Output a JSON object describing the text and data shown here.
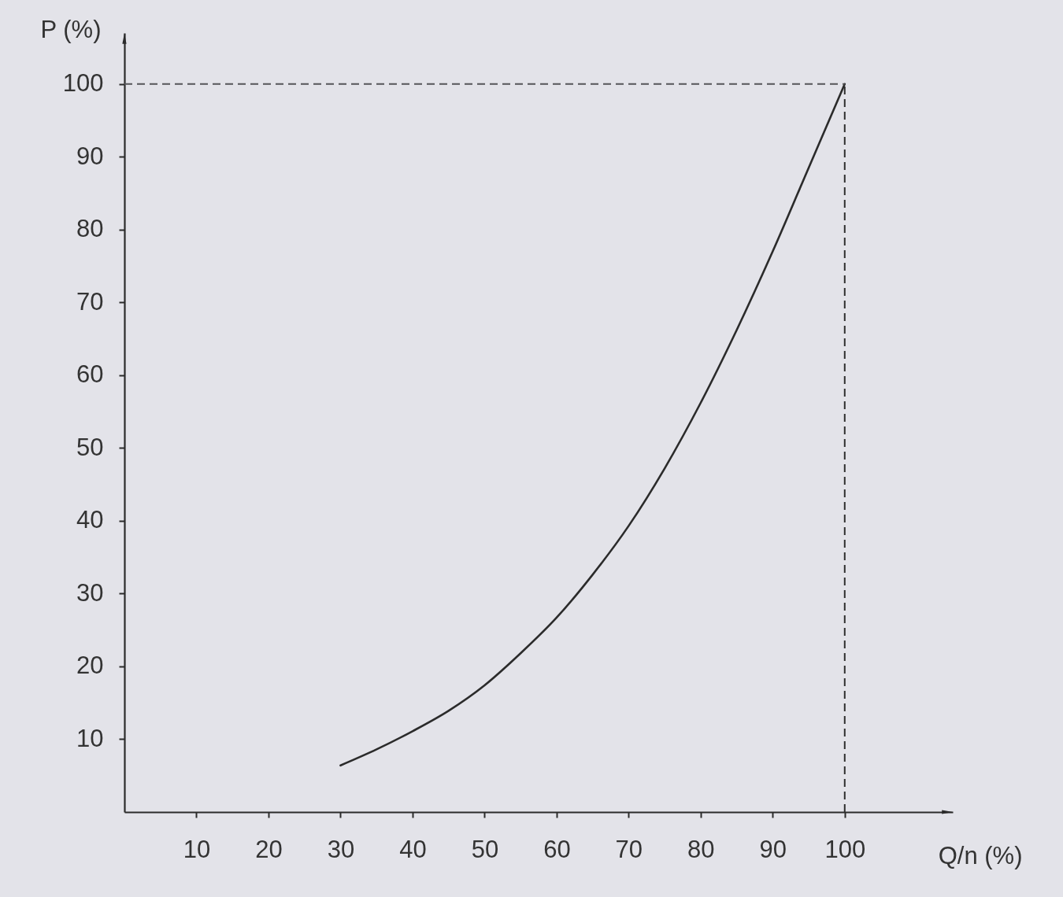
{
  "chart_data": {
    "type": "line",
    "xlabel": "Q/n (%)",
    "ylabel": "P (%)",
    "x": [
      30,
      35,
      40,
      45,
      50,
      55,
      60,
      65,
      70,
      75,
      80,
      85,
      90,
      95,
      100
    ],
    "series": [
      {
        "color": "#2b2b2b",
        "values": [
          6.4,
          8.6,
          11.1,
          13.9,
          17.4,
          21.8,
          26.7,
          32.6,
          39.3,
          47.2,
          56.2,
          66.2,
          77.0,
          88.5,
          100
        ]
      }
    ],
    "xlim": [
      0,
      115
    ],
    "ylim": [
      0,
      107
    ],
    "xticks": [
      10,
      20,
      30,
      40,
      50,
      60,
      70,
      80,
      90,
      100
    ],
    "yticks": [
      10,
      20,
      30,
      40,
      50,
      60,
      70,
      80,
      90,
      100
    ],
    "ref_lines": [
      {
        "axis": "x",
        "value": 100,
        "color": "#2e2e2e",
        "line_style": "dashed"
      },
      {
        "axis": "y",
        "value": 100,
        "color": "#555558",
        "line_style": "dashed"
      }
    ],
    "grid": false
  }
}
